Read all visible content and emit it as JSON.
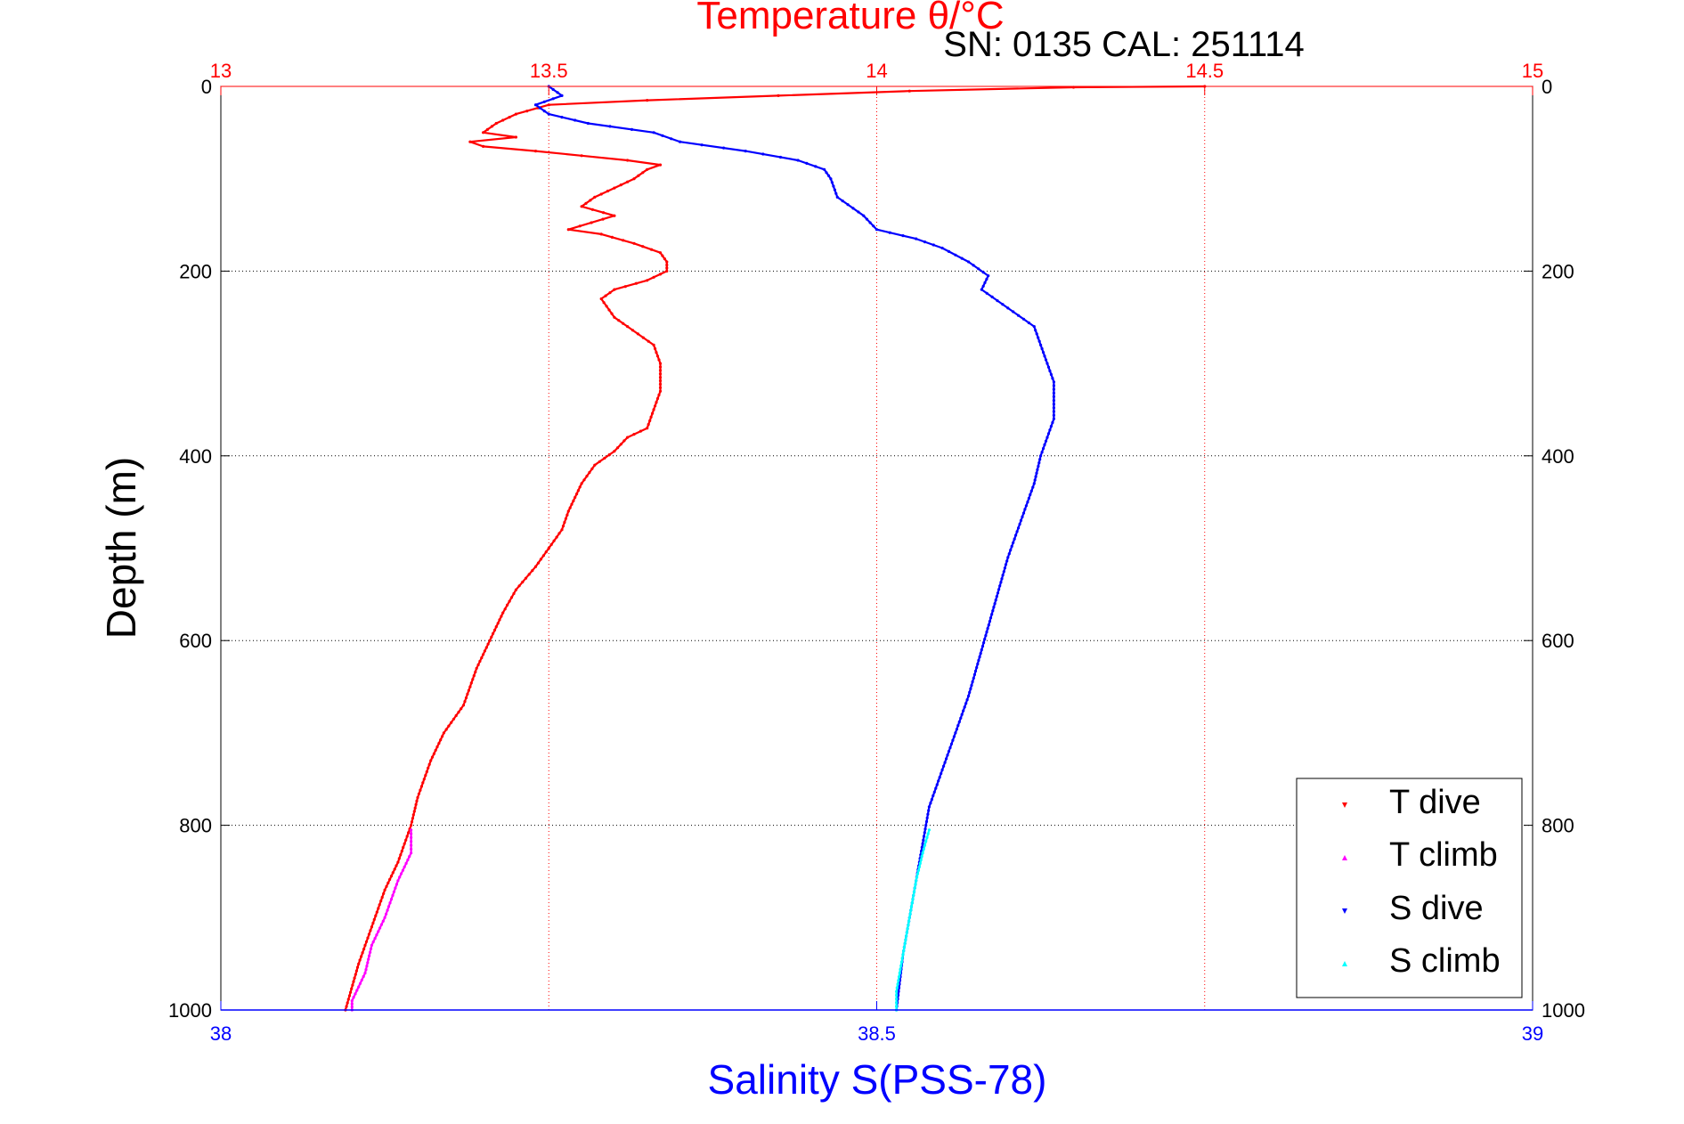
{
  "chart_data": {
    "type": "scatter",
    "title": "Temperature θ/°C",
    "annotation": "SN: 0135  CAL: 251114",
    "xlabel": "Salinity S(PSS-78)",
    "ylabel": "Depth (m)",
    "y_axis": {
      "range": [
        0,
        1000
      ],
      "inverted": true,
      "ticks": [
        0,
        200,
        400,
        600,
        800,
        1000
      ],
      "tick_labels": [
        "0",
        "200",
        "400",
        "600",
        "800",
        "1000"
      ]
    },
    "x_top": {
      "quantity": "Temperature",
      "range": [
        13,
        15
      ],
      "ticks": [
        13,
        13.5,
        14,
        14.5,
        15
      ],
      "tick_labels": [
        "13",
        "13.5",
        "14",
        "14.5",
        "15"
      ],
      "color": "#ff0000"
    },
    "x_bottom": {
      "quantity": "Salinity",
      "range": [
        38,
        39
      ],
      "ticks": [
        38,
        38.5,
        39
      ],
      "tick_labels": [
        "38",
        "38.5",
        "39"
      ],
      "color": "#0000ff"
    },
    "grid": true,
    "legend_position": "bottom-right",
    "legend": [
      {
        "label": "T dive",
        "color": "#ff0000",
        "marker": "triangle-down"
      },
      {
        "label": "T climb",
        "color": "#ff00ff",
        "marker": "triangle-up"
      },
      {
        "label": "S dive",
        "color": "#0000ff",
        "marker": "triangle-down"
      },
      {
        "label": "S climb",
        "color": "#00ffff",
        "marker": "triangle-up"
      }
    ],
    "series": [
      {
        "name": "T dive",
        "axis": "top",
        "color": "#ff0000",
        "points": [
          [
            14.5,
            0
          ],
          [
            14.3,
            1
          ],
          [
            14.05,
            5
          ],
          [
            13.85,
            10
          ],
          [
            13.65,
            15
          ],
          [
            13.5,
            20
          ],
          [
            13.45,
            30
          ],
          [
            13.42,
            40
          ],
          [
            13.4,
            50
          ],
          [
            13.45,
            55
          ],
          [
            13.38,
            60
          ],
          [
            13.4,
            65
          ],
          [
            13.48,
            70
          ],
          [
            13.55,
            75
          ],
          [
            13.62,
            80
          ],
          [
            13.67,
            85
          ],
          [
            13.65,
            90
          ],
          [
            13.63,
            100
          ],
          [
            13.6,
            110
          ],
          [
            13.57,
            120
          ],
          [
            13.55,
            130
          ],
          [
            13.6,
            140
          ],
          [
            13.53,
            155
          ],
          [
            13.58,
            160
          ],
          [
            13.63,
            170
          ],
          [
            13.67,
            180
          ],
          [
            13.68,
            190
          ],
          [
            13.68,
            200
          ],
          [
            13.65,
            210
          ],
          [
            13.6,
            220
          ],
          [
            13.58,
            230
          ],
          [
            13.6,
            250
          ],
          [
            13.62,
            260
          ],
          [
            13.66,
            280
          ],
          [
            13.67,
            300
          ],
          [
            13.67,
            330
          ],
          [
            13.66,
            350
          ],
          [
            13.65,
            370
          ],
          [
            13.62,
            380
          ],
          [
            13.6,
            395
          ],
          [
            13.57,
            410
          ],
          [
            13.55,
            430
          ],
          [
            13.53,
            460
          ],
          [
            13.52,
            480
          ],
          [
            13.5,
            500
          ],
          [
            13.48,
            520
          ],
          [
            13.45,
            545
          ],
          [
            13.43,
            570
          ],
          [
            13.41,
            600
          ],
          [
            13.39,
            630
          ],
          [
            13.37,
            670
          ],
          [
            13.34,
            700
          ],
          [
            13.32,
            730
          ],
          [
            13.3,
            770
          ],
          [
            13.29,
            800
          ],
          [
            13.27,
            840
          ],
          [
            13.25,
            870
          ],
          [
            13.23,
            910
          ],
          [
            13.21,
            950
          ],
          [
            13.19,
            1000
          ]
        ]
      },
      {
        "name": "T climb",
        "axis": "top",
        "color": "#ff00ff",
        "points": [
          [
            13.29,
            805
          ],
          [
            13.29,
            830
          ],
          [
            13.27,
            860
          ],
          [
            13.25,
            900
          ],
          [
            13.23,
            930
          ],
          [
            13.22,
            960
          ],
          [
            13.2,
            990
          ],
          [
            13.2,
            1000
          ]
        ]
      },
      {
        "name": "S dive",
        "axis": "bottom",
        "color": "#0000ff",
        "points": [
          [
            38.25,
            0
          ],
          [
            38.26,
            10
          ],
          [
            38.24,
            20
          ],
          [
            38.25,
            30
          ],
          [
            38.28,
            40
          ],
          [
            38.33,
            50
          ],
          [
            38.35,
            60
          ],
          [
            38.4,
            70
          ],
          [
            38.44,
            80
          ],
          [
            38.46,
            90
          ],
          [
            38.465,
            100
          ],
          [
            38.47,
            120
          ],
          [
            38.49,
            140
          ],
          [
            38.5,
            155
          ],
          [
            38.53,
            165
          ],
          [
            38.55,
            175
          ],
          [
            38.57,
            190
          ],
          [
            38.585,
            205
          ],
          [
            38.58,
            220
          ],
          [
            38.6,
            240
          ],
          [
            38.62,
            260
          ],
          [
            38.625,
            280
          ],
          [
            38.63,
            300
          ],
          [
            38.635,
            320
          ],
          [
            38.635,
            340
          ],
          [
            38.635,
            360
          ],
          [
            38.63,
            380
          ],
          [
            38.625,
            400
          ],
          [
            38.62,
            430
          ],
          [
            38.61,
            470
          ],
          [
            38.6,
            510
          ],
          [
            38.59,
            560
          ],
          [
            38.58,
            610
          ],
          [
            38.57,
            660
          ],
          [
            38.56,
            700
          ],
          [
            38.55,
            740
          ],
          [
            38.54,
            780
          ],
          [
            38.535,
            820
          ],
          [
            38.53,
            860
          ],
          [
            38.525,
            900
          ],
          [
            38.52,
            940
          ],
          [
            38.515,
            1000
          ]
        ]
      },
      {
        "name": "S climb",
        "axis": "bottom",
        "color": "#00ffff",
        "points": [
          [
            38.54,
            805
          ],
          [
            38.535,
            830
          ],
          [
            38.53,
            860
          ],
          [
            38.525,
            900
          ],
          [
            38.52,
            940
          ],
          [
            38.515,
            980
          ],
          [
            38.515,
            1000
          ]
        ]
      }
    ]
  }
}
